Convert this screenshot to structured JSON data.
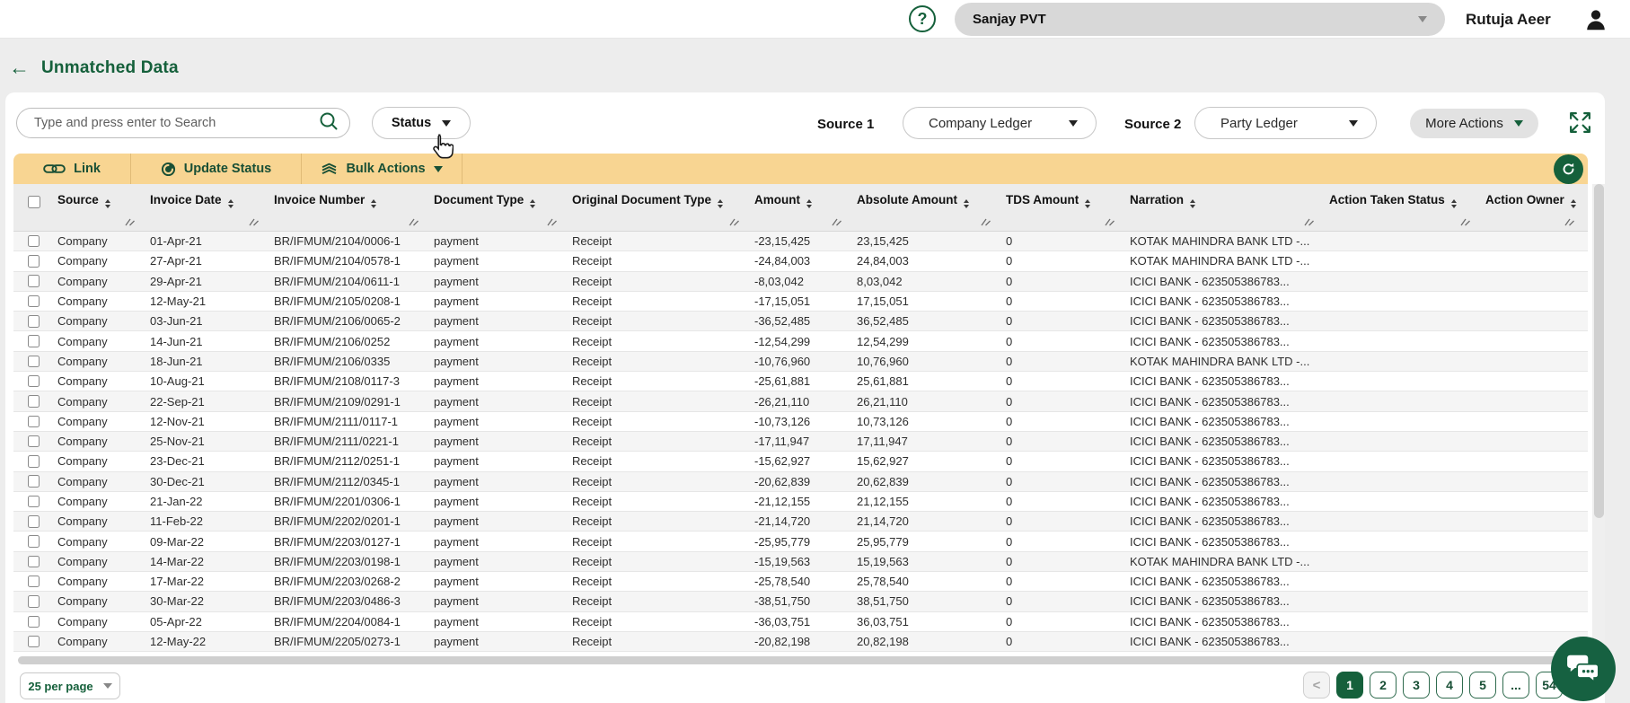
{
  "topbar": {
    "help": "?",
    "company": "Sanjay PVT",
    "user": "Rutuja Aeer"
  },
  "page": {
    "back": "←",
    "title": "Unmatched Data"
  },
  "filters": {
    "search_placeholder": "Type and press enter to Search",
    "status": "Status",
    "source1_label": "Source 1",
    "source1_value": "Company Ledger",
    "source2_label": "Source 2",
    "source2_value": "Party Ledger",
    "more_actions": "More Actions"
  },
  "action_bar": {
    "link": "Link",
    "update_status": "Update Status",
    "bulk_actions": "Bulk Actions"
  },
  "table": {
    "columns": [
      "Source",
      "Invoice Date",
      "Invoice Number",
      "Document Type",
      "Original Document Type",
      "Amount",
      "Absolute Amount",
      "TDS Amount",
      "Narration",
      "Action Taken Status",
      "Action Owner"
    ],
    "rows": [
      [
        "Company",
        "01-Apr-21",
        "BR/IFMUM/2104/0006-1",
        "payment",
        "Receipt",
        "-23,15,425",
        "23,15,425",
        "0",
        "KOTAK MAHINDRA BANK LTD -...",
        "",
        ""
      ],
      [
        "Company",
        "27-Apr-21",
        "BR/IFMUM/2104/0578-1",
        "payment",
        "Receipt",
        "-24,84,003",
        "24,84,003",
        "0",
        "KOTAK MAHINDRA BANK LTD -...",
        "",
        ""
      ],
      [
        "Company",
        "29-Apr-21",
        "BR/IFMUM/2104/0611-1",
        "payment",
        "Receipt",
        "-8,03,042",
        "8,03,042",
        "0",
        "ICICI BANK - 623505386783...",
        "",
        ""
      ],
      [
        "Company",
        "12-May-21",
        "BR/IFMUM/2105/0208-1",
        "payment",
        "Receipt",
        "-17,15,051",
        "17,15,051",
        "0",
        "ICICI BANK - 623505386783...",
        "",
        ""
      ],
      [
        "Company",
        "03-Jun-21",
        "BR/IFMUM/2106/0065-2",
        "payment",
        "Receipt",
        "-36,52,485",
        "36,52,485",
        "0",
        "ICICI BANK - 623505386783...",
        "",
        ""
      ],
      [
        "Company",
        "14-Jun-21",
        "BR/IFMUM/2106/0252",
        "payment",
        "Receipt",
        "-12,54,299",
        "12,54,299",
        "0",
        "ICICI BANK - 623505386783...",
        "",
        ""
      ],
      [
        "Company",
        "18-Jun-21",
        "BR/IFMUM/2106/0335",
        "payment",
        "Receipt",
        "-10,76,960",
        "10,76,960",
        "0",
        "KOTAK MAHINDRA BANK LTD -...",
        "",
        ""
      ],
      [
        "Company",
        "10-Aug-21",
        "BR/IFMUM/2108/0117-3",
        "payment",
        "Receipt",
        "-25,61,881",
        "25,61,881",
        "0",
        "ICICI BANK - 623505386783...",
        "",
        ""
      ],
      [
        "Company",
        "22-Sep-21",
        "BR/IFMUM/2109/0291-1",
        "payment",
        "Receipt",
        "-26,21,110",
        "26,21,110",
        "0",
        "ICICI BANK - 623505386783...",
        "",
        ""
      ],
      [
        "Company",
        "12-Nov-21",
        "BR/IFMUM/2111/0117-1",
        "payment",
        "Receipt",
        "-10,73,126",
        "10,73,126",
        "0",
        "ICICI BANK - 623505386783...",
        "",
        ""
      ],
      [
        "Company",
        "25-Nov-21",
        "BR/IFMUM/2111/0221-1",
        "payment",
        "Receipt",
        "-17,11,947",
        "17,11,947",
        "0",
        "ICICI BANK - 623505386783...",
        "",
        ""
      ],
      [
        "Company",
        "23-Dec-21",
        "BR/IFMUM/2112/0251-1",
        "payment",
        "Receipt",
        "-15,62,927",
        "15,62,927",
        "0",
        "ICICI BANK - 623505386783...",
        "",
        ""
      ],
      [
        "Company",
        "30-Dec-21",
        "BR/IFMUM/2112/0345-1",
        "payment",
        "Receipt",
        "-20,62,839",
        "20,62,839",
        "0",
        "ICICI BANK - 623505386783...",
        "",
        ""
      ],
      [
        "Company",
        "21-Jan-22",
        "BR/IFMUM/2201/0306-1",
        "payment",
        "Receipt",
        "-21,12,155",
        "21,12,155",
        "0",
        "ICICI BANK - 623505386783...",
        "",
        ""
      ],
      [
        "Company",
        "11-Feb-22",
        "BR/IFMUM/2202/0201-1",
        "payment",
        "Receipt",
        "-21,14,720",
        "21,14,720",
        "0",
        "ICICI BANK - 623505386783...",
        "",
        ""
      ],
      [
        "Company",
        "09-Mar-22",
        "BR/IFMUM/2203/0127-1",
        "payment",
        "Receipt",
        "-25,95,779",
        "25,95,779",
        "0",
        "ICICI BANK - 623505386783...",
        "",
        ""
      ],
      [
        "Company",
        "14-Mar-22",
        "BR/IFMUM/2203/0198-1",
        "payment",
        "Receipt",
        "-15,19,563",
        "15,19,563",
        "0",
        "KOTAK MAHINDRA BANK LTD -...",
        "",
        ""
      ],
      [
        "Company",
        "17-Mar-22",
        "BR/IFMUM/2203/0268-2",
        "payment",
        "Receipt",
        "-25,78,540",
        "25,78,540",
        "0",
        "ICICI BANK - 623505386783...",
        "",
        ""
      ],
      [
        "Company",
        "30-Mar-22",
        "BR/IFMUM/2203/0486-3",
        "payment",
        "Receipt",
        "-38,51,750",
        "38,51,750",
        "0",
        "ICICI BANK - 623505386783...",
        "",
        ""
      ],
      [
        "Company",
        "05-Apr-22",
        "BR/IFMUM/2204/0084-1",
        "payment",
        "Receipt",
        "-36,03,751",
        "36,03,751",
        "0",
        "ICICI BANK - 623505386783...",
        "",
        ""
      ],
      [
        "Company",
        "12-May-22",
        "BR/IFMUM/2205/0273-1",
        "payment",
        "Receipt",
        "-20,82,198",
        "20,82,198",
        "0",
        "ICICI BANK - 623505386783...",
        "",
        ""
      ]
    ]
  },
  "pagination": {
    "per_page": "25 per page",
    "prev": "<",
    "pages": [
      "1",
      "2",
      "3",
      "4",
      "5",
      "...",
      "54"
    ],
    "active": "1"
  },
  "colors": {
    "brand_green": "#15603b",
    "action_bar_yellow": "#f8d592",
    "row_stripe": "#f5f5f5"
  }
}
